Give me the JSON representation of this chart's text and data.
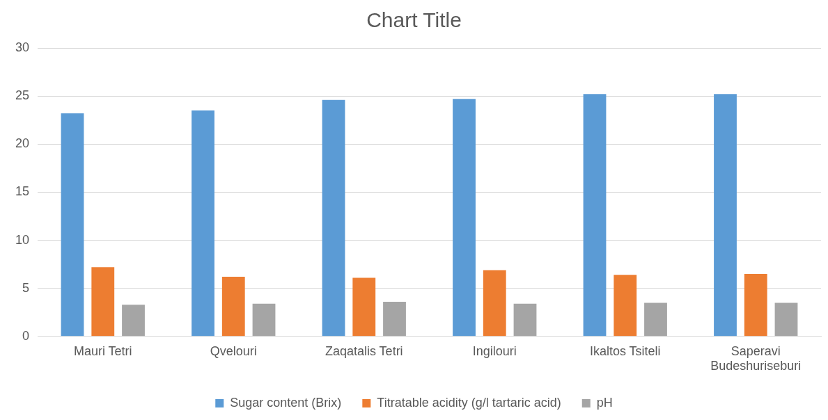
{
  "chart_data": {
    "type": "bar",
    "title": "Chart Title",
    "categories": [
      "Mauri Tetri",
      "Qvelouri",
      "Zaqatalis Tetri",
      "Ingilouri",
      "Ikaltos Tsiteli",
      "Saperavi Budeshuriseburi"
    ],
    "series": [
      {
        "name": "Sugar content (Brix)",
        "color": "#5b9bd5",
        "values": [
          23.2,
          23.5,
          24.6,
          24.7,
          25.2,
          25.2
        ]
      },
      {
        "name": "Titratable acidity (g/l tartaric acid)",
        "color": "#ed7d31",
        "values": [
          7.2,
          6.2,
          6.1,
          6.9,
          6.4,
          6.5
        ]
      },
      {
        "name": "pH",
        "color": "#a5a5a5",
        "values": [
          3.3,
          3.4,
          3.6,
          3.4,
          3.5,
          3.5
        ]
      }
    ],
    "ylim": [
      0,
      30
    ],
    "yticks": [
      0,
      5,
      10,
      15,
      20,
      25,
      30
    ],
    "grid": "y",
    "legend": "bottom"
  }
}
